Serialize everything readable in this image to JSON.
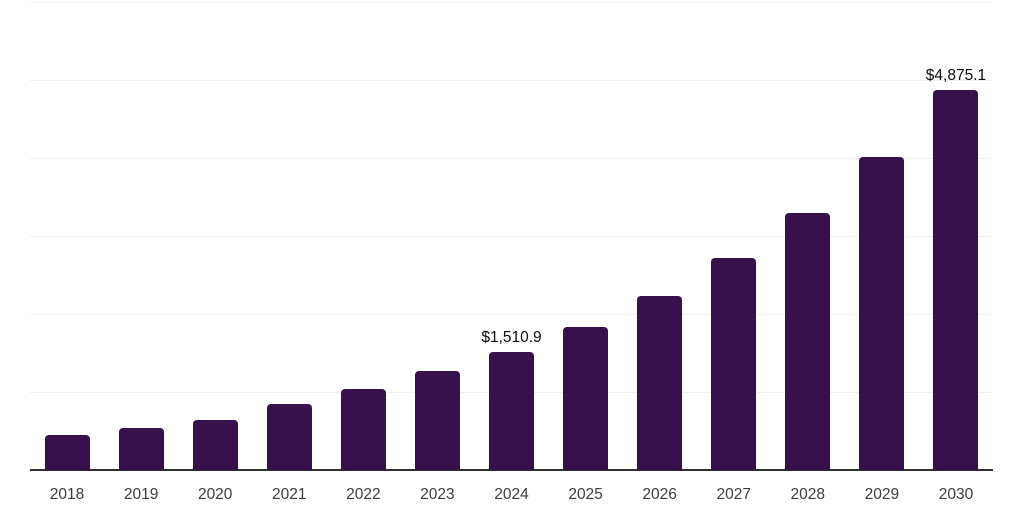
{
  "chart": {
    "background": "#ffffff",
    "bar_color": "#36114B",
    "axis_color": "#303030",
    "gridline_color": "#f0f0f0",
    "value_label_color": "#0a0a0a",
    "tick_label_color": "#3d3d3d"
  },
  "chart_data": {
    "type": "bar",
    "title": "",
    "xlabel": "",
    "ylabel": "",
    "categories": [
      "2018",
      "2019",
      "2020",
      "2021",
      "2022",
      "2023",
      "2024",
      "2025",
      "2026",
      "2027",
      "2028",
      "2029",
      "2030"
    ],
    "values": [
      445,
      535,
      640,
      845,
      1040,
      1265,
      1510.9,
      1837,
      2233,
      2715,
      3301,
      4013,
      4875.1
    ],
    "value_labels": {
      "2024": "$1,510.9",
      "2030": "$4,875.1"
    },
    "ylim": [
      0,
      6000
    ],
    "grid": {
      "show": true,
      "interval": 1000,
      "orientation": "horizontal"
    },
    "legend_position": "none"
  }
}
